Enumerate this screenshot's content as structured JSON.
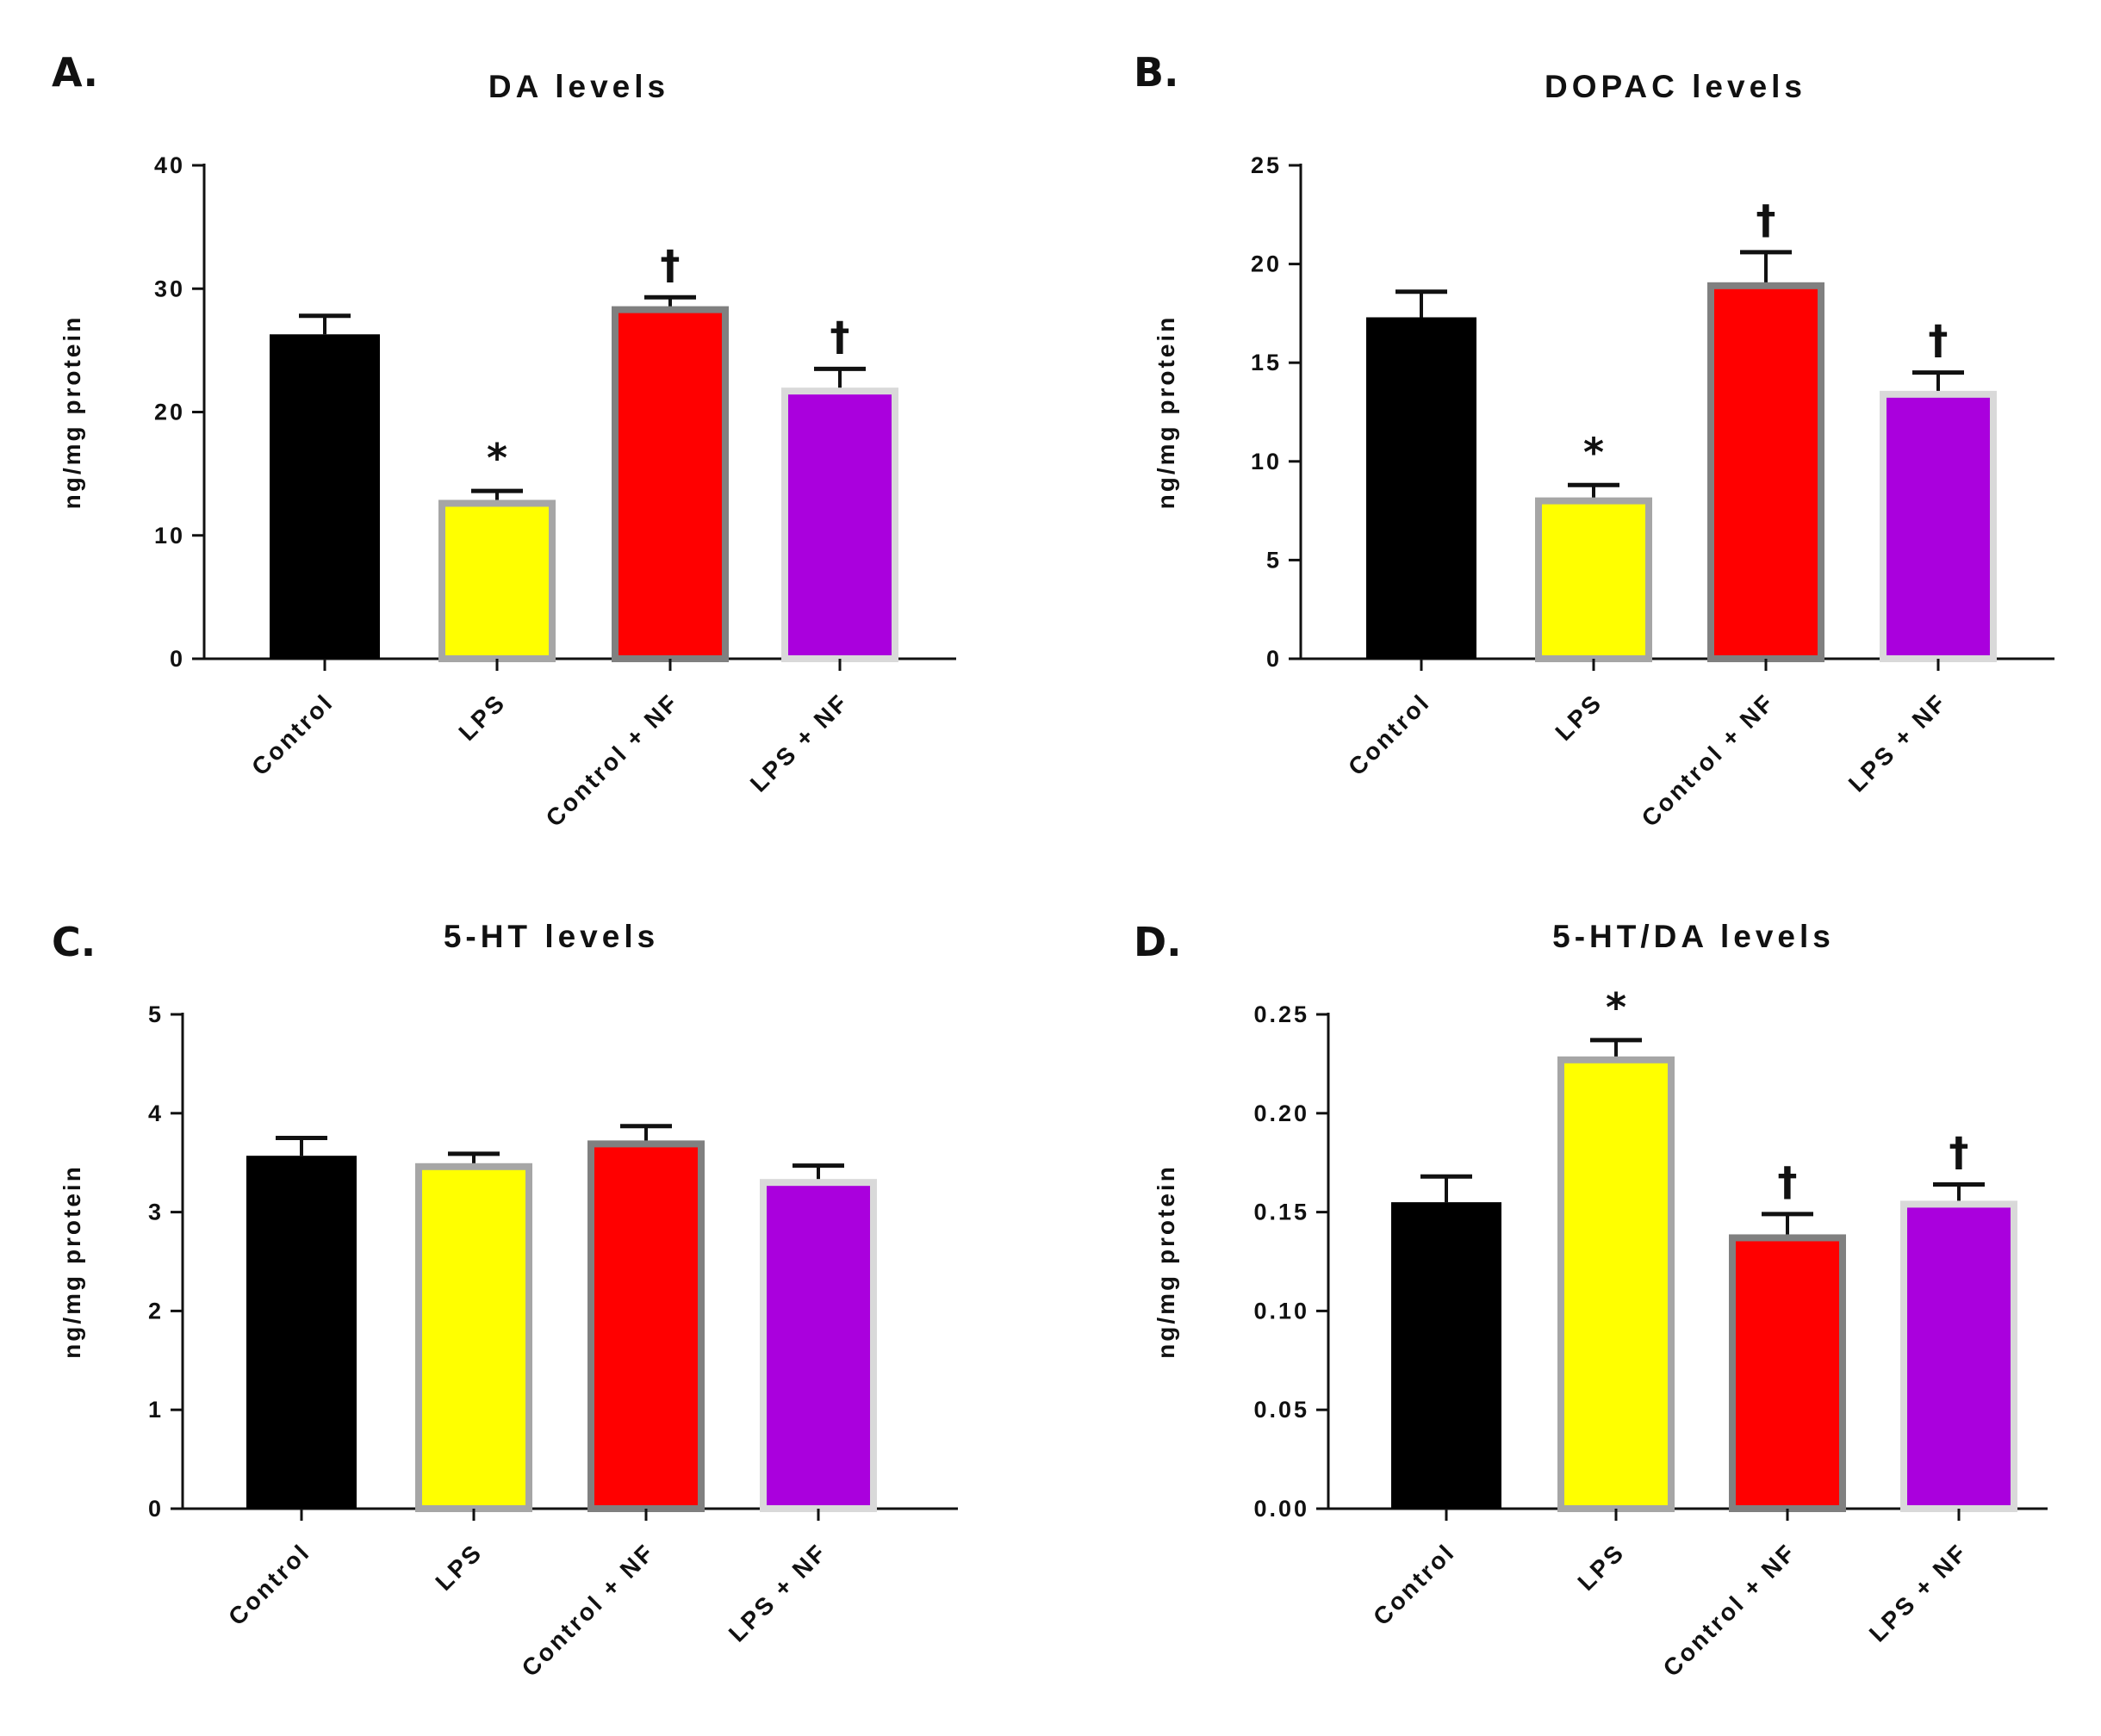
{
  "chart_data": [
    {
      "panel": "A.",
      "type": "bar",
      "title": "DA levels",
      "xlabel": "",
      "ylabel": "ng/mg protein",
      "ylim": [
        0,
        40
      ],
      "yticks": [
        0,
        10,
        20,
        30,
        40
      ],
      "ytick_labels": [
        "0",
        "10",
        "20",
        "30",
        "40"
      ],
      "categories": [
        "Control",
        "LPS",
        "Control + NF",
        "LPS + NF"
      ],
      "values": [
        26.3,
        12.6,
        28.3,
        21.7
      ],
      "errors": [
        1.5,
        1.0,
        1.0,
        1.8
      ],
      "significance": [
        "",
        "*",
        "†",
        "†"
      ],
      "fill_colors": [
        "#000000",
        "#ffff00",
        "#ff0000",
        "#aa00dd"
      ],
      "edge_colors": [
        "#000000",
        "#a6a6a6",
        "#808080",
        "#d9d9d9"
      ]
    },
    {
      "panel": "B.",
      "type": "bar",
      "title": "DOPAC levels",
      "xlabel": "",
      "ylabel": "ng/mg protein",
      "ylim": [
        0,
        25
      ],
      "yticks": [
        0,
        5,
        10,
        15,
        20,
        25
      ],
      "ytick_labels": [
        "0",
        "5",
        "10",
        "15",
        "20",
        "25"
      ],
      "categories": [
        "Control",
        "LPS",
        "Control + NF",
        "LPS + NF"
      ],
      "values": [
        17.3,
        8.0,
        18.9,
        13.4
      ],
      "errors": [
        1.3,
        0.8,
        1.7,
        1.1
      ],
      "significance": [
        "",
        "*",
        "†",
        "†"
      ],
      "fill_colors": [
        "#000000",
        "#ffff00",
        "#ff0000",
        "#aa00dd"
      ],
      "edge_colors": [
        "#000000",
        "#a6a6a6",
        "#808080",
        "#d9d9d9"
      ]
    },
    {
      "panel": "C.",
      "type": "bar",
      "title": "5-HT levels",
      "xlabel": "",
      "ylabel": "ng/mg protein",
      "ylim": [
        0,
        5
      ],
      "yticks": [
        0,
        1,
        2,
        3,
        4,
        5
      ],
      "ytick_labels": [
        "0",
        "1",
        "2",
        "3",
        "4",
        "5"
      ],
      "categories": [
        "Control",
        "LPS",
        "Control + NF",
        "LPS + NF"
      ],
      "values": [
        3.57,
        3.46,
        3.69,
        3.3
      ],
      "errors": [
        0.18,
        0.13,
        0.18,
        0.17
      ],
      "significance": [
        "",
        "",
        "",
        ""
      ],
      "fill_colors": [
        "#000000",
        "#ffff00",
        "#ff0000",
        "#aa00dd"
      ],
      "edge_colors": [
        "#000000",
        "#a6a6a6",
        "#808080",
        "#d9d9d9"
      ]
    },
    {
      "panel": "D.",
      "type": "bar",
      "title": "5-HT/DA levels",
      "xlabel": "",
      "ylabel": "ng/mg protein",
      "ylim": [
        0,
        0.25
      ],
      "yticks": [
        0,
        0.05,
        0.1,
        0.15,
        0.2,
        0.25
      ],
      "ytick_labels": [
        "0.00",
        "0.05",
        "0.10",
        "0.15",
        "0.20",
        "0.25"
      ],
      "categories": [
        "Control",
        "LPS",
        "Control + NF",
        "LPS + NF"
      ],
      "values": [
        0.155,
        0.227,
        0.137,
        0.154
      ],
      "errors": [
        0.013,
        0.01,
        0.012,
        0.01
      ],
      "significance": [
        "",
        "*",
        "†",
        "†"
      ],
      "fill_colors": [
        "#000000",
        "#ffff00",
        "#ff0000",
        "#aa00dd"
      ],
      "edge_colors": [
        "#000000",
        "#a6a6a6",
        "#808080",
        "#d9d9d9"
      ]
    }
  ]
}
